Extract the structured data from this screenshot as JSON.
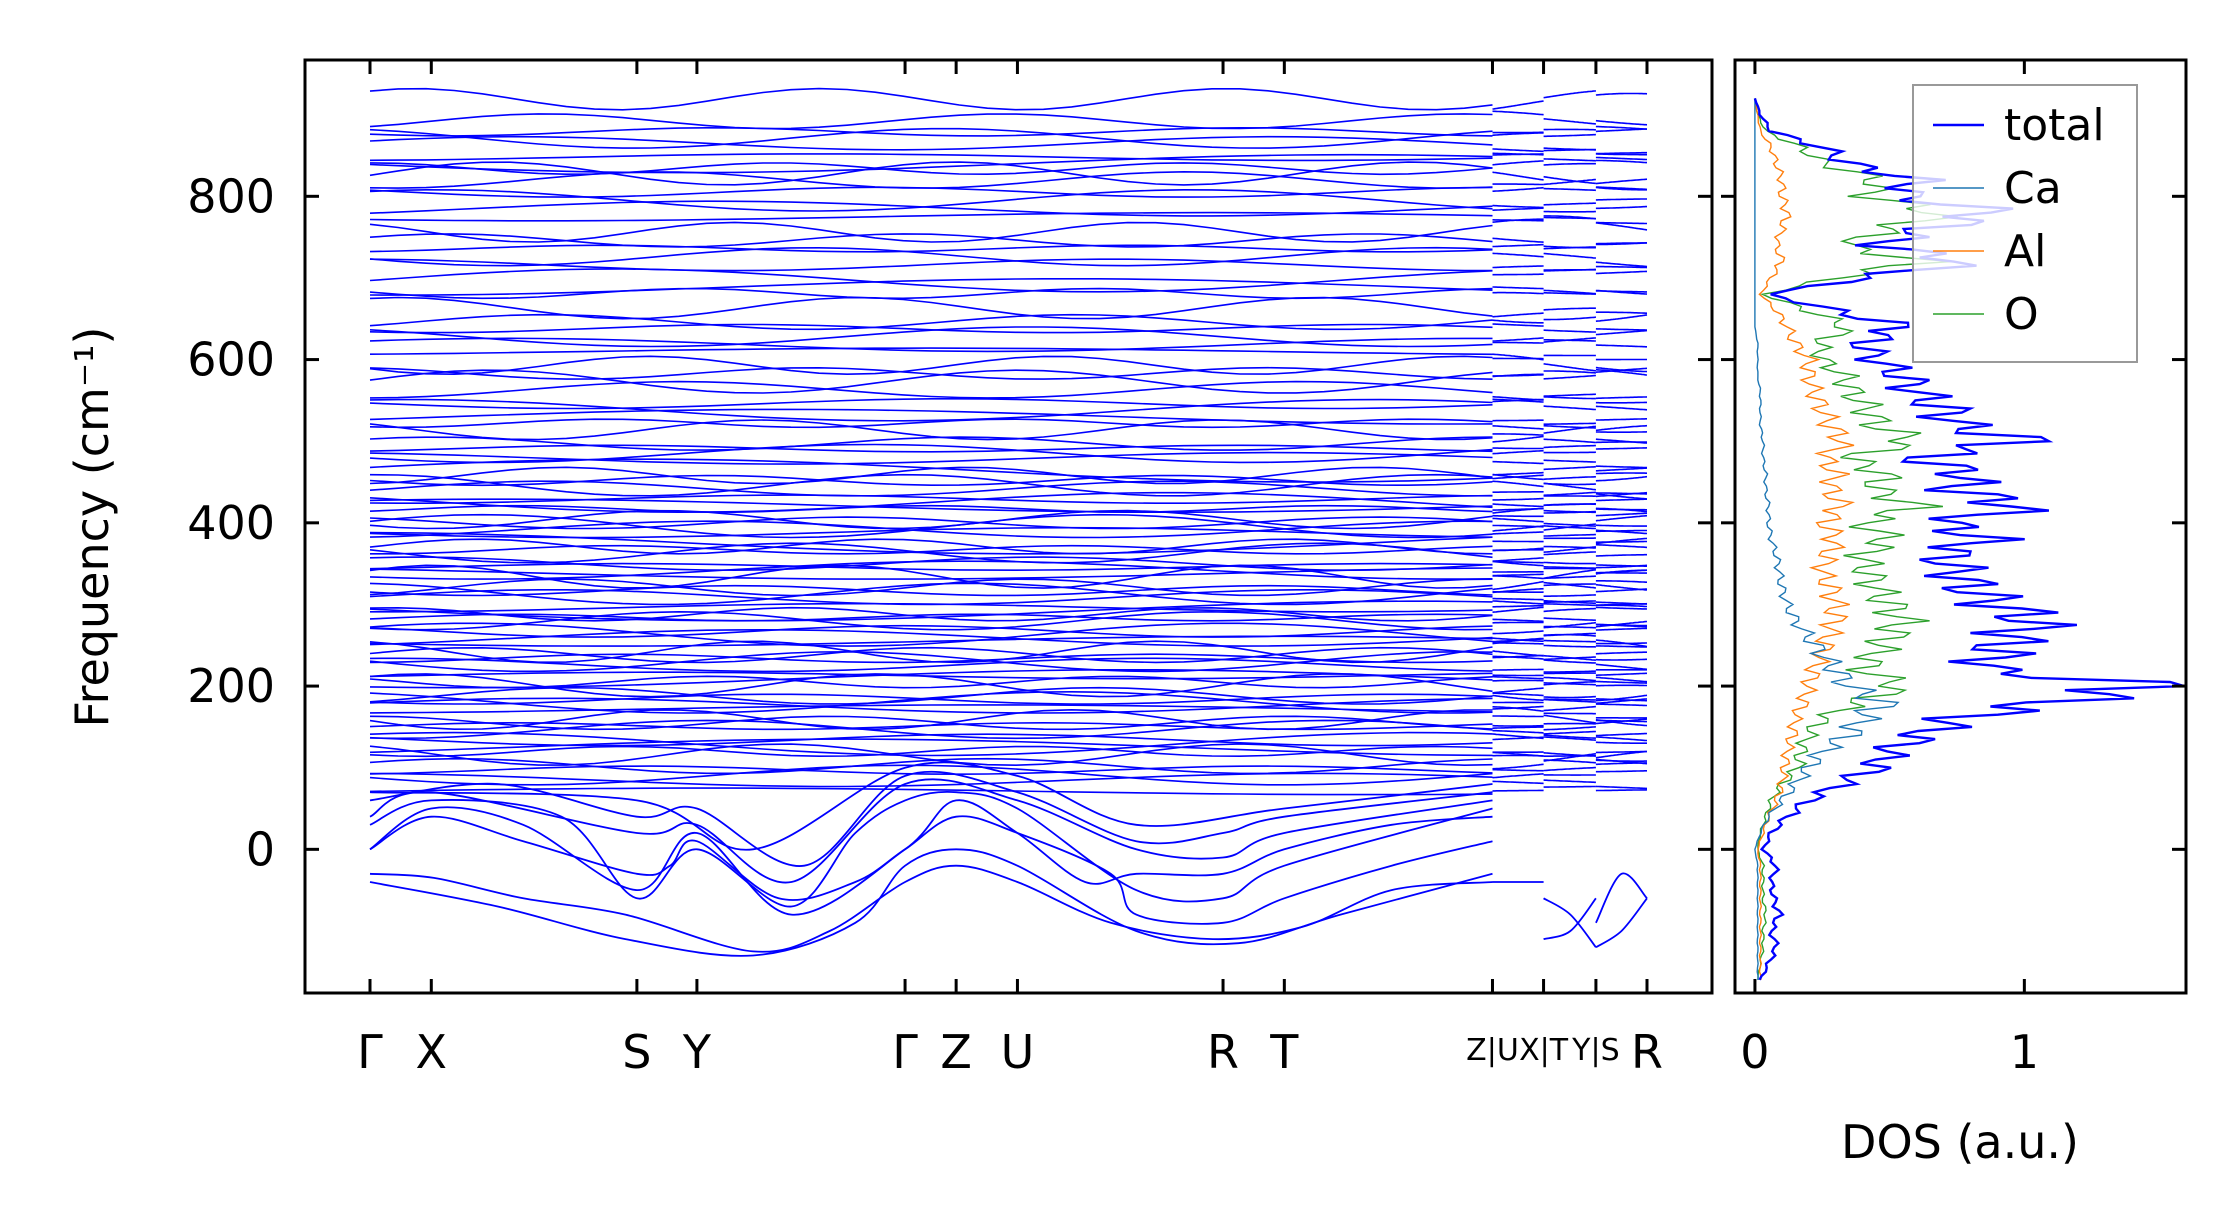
{
  "chart_data": [
    {
      "type": "line",
      "title": "",
      "xlabel": "",
      "ylabel": "Frequency (cm⁻¹)",
      "ylim": [
        -176,
        967
      ],
      "yticks": [
        0,
        200,
        400,
        600,
        800
      ],
      "grid": false,
      "kpath_ticks": [
        {
          "k": 0.0,
          "label": "Γ"
        },
        {
          "k": 0.048,
          "label": "X"
        },
        {
          "k": 0.209,
          "label": "S"
        },
        {
          "k": 0.256,
          "label": "Y"
        },
        {
          "k": 0.419,
          "label": "Γ"
        },
        {
          "k": 0.459,
          "label": "Z"
        },
        {
          "k": 0.507,
          "label": "U"
        },
        {
          "k": 0.668,
          "label": "R"
        },
        {
          "k": 0.716,
          "label": "T"
        },
        {
          "k": 0.879,
          "label": "Z|U",
          "top": "Z",
          "bottom": "U"
        },
        {
          "k": 0.919,
          "label": "X|T",
          "top": "X",
          "bottom": "T"
        },
        {
          "k": 0.96,
          "label": "Y|S",
          "top": "Y",
          "bottom": "S"
        },
        {
          "k": 1.0,
          "label": "R"
        }
      ],
      "segments": [
        [
          0.0,
          0.879
        ],
        [
          0.879,
          0.919
        ],
        [
          0.919,
          0.96
        ],
        [
          0.96,
          1.0
        ]
      ],
      "line_color": "#0000ff",
      "flat_band_frequencies": [
        75,
        82,
        90,
        98,
        105,
        112,
        118,
        125,
        131,
        138,
        144,
        150,
        156,
        162,
        168,
        174,
        180,
        186,
        192,
        198,
        204,
        210,
        216,
        222,
        228,
        234,
        240,
        246,
        252,
        258,
        264,
        270,
        276,
        282,
        288,
        294,
        300,
        306,
        312,
        318,
        324,
        330,
        336,
        342,
        348,
        354,
        360,
        366,
        372,
        378,
        384,
        390,
        396,
        402,
        408,
        414,
        420,
        426,
        432,
        438,
        444,
        452,
        460,
        468,
        476,
        484,
        492,
        500,
        510,
        520,
        530,
        540,
        550,
        560,
        572,
        584,
        596,
        606,
        616,
        628,
        640,
        650,
        660,
        680,
        690,
        700,
        712,
        724,
        736,
        748,
        760,
        772,
        784,
        796,
        808,
        816,
        826,
        834,
        842,
        852,
        862,
        870,
        880,
        895,
        915
      ],
      "low_bands": [
        [
          [
            0,
            -30
          ],
          [
            0.05,
            -35
          ],
          [
            0.12,
            -60
          ],
          [
            0.2,
            -80
          ],
          [
            0.3,
            -125
          ],
          [
            0.36,
            -100
          ],
          [
            0.419,
            -40
          ],
          [
            0.459,
            -20
          ],
          [
            0.507,
            -40
          ],
          [
            0.58,
            -90
          ],
          [
            0.66,
            -110
          ],
          [
            0.73,
            -95
          ],
          [
            0.8,
            -50
          ],
          [
            0.879,
            -40
          ]
        ],
        [
          [
            0,
            -40
          ],
          [
            0.1,
            -70
          ],
          [
            0.2,
            -110
          ],
          [
            0.3,
            -130
          ],
          [
            0.38,
            -90
          ],
          [
            0.419,
            -20
          ],
          [
            0.459,
            0
          ],
          [
            0.507,
            -20
          ],
          [
            0.6,
            -100
          ],
          [
            0.68,
            -115
          ],
          [
            0.76,
            -80
          ],
          [
            0.879,
            -30
          ]
        ],
        [
          [
            0,
            0
          ],
          [
            0.048,
            40
          ],
          [
            0.12,
            10
          ],
          [
            0.209,
            -30
          ],
          [
            0.235,
            -20
          ],
          [
            0.256,
            10
          ],
          [
            0.32,
            -60
          ],
          [
            0.38,
            -40
          ],
          [
            0.419,
            0
          ],
          [
            0.459,
            40
          ],
          [
            0.507,
            20
          ],
          [
            0.58,
            -30
          ],
          [
            0.6,
            -80
          ],
          [
            0.668,
            -90
          ],
          [
            0.716,
            -60
          ],
          [
            0.8,
            -20
          ],
          [
            0.879,
            10
          ]
        ],
        [
          [
            0,
            0
          ],
          [
            0.048,
            50
          ],
          [
            0.12,
            30
          ],
          [
            0.209,
            -50
          ],
          [
            0.256,
            20
          ],
          [
            0.33,
            -80
          ],
          [
            0.419,
            0
          ],
          [
            0.459,
            60
          ],
          [
            0.507,
            20
          ],
          [
            0.56,
            -40
          ],
          [
            0.6,
            -30
          ],
          [
            0.668,
            -30
          ],
          [
            0.716,
            0
          ],
          [
            0.8,
            30
          ],
          [
            0.879,
            40
          ]
        ],
        [
          [
            0,
            30
          ],
          [
            0.048,
            60
          ],
          [
            0.15,
            40
          ],
          [
            0.209,
            -60
          ],
          [
            0.256,
            0
          ],
          [
            0.33,
            -70
          ],
          [
            0.38,
            20
          ],
          [
            0.419,
            60
          ],
          [
            0.459,
            70
          ],
          [
            0.507,
            50
          ],
          [
            0.6,
            -50
          ],
          [
            0.668,
            -60
          ],
          [
            0.716,
            -20
          ],
          [
            0.879,
            50
          ]
        ],
        [
          [
            0,
            40
          ],
          [
            0.048,
            70
          ],
          [
            0.209,
            20
          ],
          [
            0.256,
            30
          ],
          [
            0.33,
            -40
          ],
          [
            0.419,
            80
          ],
          [
            0.507,
            60
          ],
          [
            0.6,
            0
          ],
          [
            0.668,
            -10
          ],
          [
            0.716,
            20
          ],
          [
            0.879,
            60
          ]
        ],
        [
          [
            0,
            60
          ],
          [
            0.1,
            80
          ],
          [
            0.209,
            40
          ],
          [
            0.256,
            50
          ],
          [
            0.34,
            -20
          ],
          [
            0.419,
            90
          ],
          [
            0.507,
            70
          ],
          [
            0.6,
            10
          ],
          [
            0.668,
            20
          ],
          [
            0.716,
            40
          ],
          [
            0.879,
            70
          ]
        ],
        [
          [
            0,
            70
          ],
          [
            0.209,
            60
          ],
          [
            0.3,
            0
          ],
          [
            0.419,
            100
          ],
          [
            0.507,
            90
          ],
          [
            0.6,
            30
          ],
          [
            0.716,
            50
          ],
          [
            0.879,
            80
          ]
        ],
        [
          [
            0.879,
            -40
          ],
          [
            0.919,
            -40
          ]
        ],
        [
          [
            0.919,
            -60
          ],
          [
            0.94,
            -80
          ],
          [
            0.96,
            -120
          ]
        ],
        [
          [
            0.919,
            -110
          ],
          [
            0.94,
            -100
          ],
          [
            0.96,
            -60
          ]
        ],
        [
          [
            0.96,
            -120
          ],
          [
            0.98,
            -100
          ],
          [
            1.0,
            -60
          ]
        ],
        [
          [
            0.96,
            -90
          ],
          [
            0.98,
            -30
          ],
          [
            1.0,
            -60
          ]
        ]
      ]
    },
    {
      "type": "line",
      "xlabel": "DOS (a.u.)",
      "ylabel": "",
      "xlim": [
        -0.074,
        1.6
      ],
      "ylim": [
        -176,
        967
      ],
      "xticks": [
        0,
        1
      ],
      "legend_position": "top-right",
      "frequency": [
        -160,
        -140,
        -120,
        -100,
        -80,
        -60,
        -40,
        -20,
        0,
        20,
        40,
        60,
        80,
        100,
        120,
        140,
        160,
        180,
        200,
        220,
        240,
        260,
        280,
        300,
        320,
        340,
        360,
        380,
        400,
        420,
        440,
        460,
        480,
        500,
        520,
        540,
        560,
        580,
        600,
        620,
        640,
        660,
        680,
        700,
        720,
        740,
        760,
        780,
        800,
        820,
        840,
        860,
        880,
        900,
        920
      ],
      "series": [
        {
          "name": "total",
          "color": "#0000ff",
          "values": [
            0.02,
            0.05,
            0.08,
            0.06,
            0.09,
            0.07,
            0.06,
            0.08,
            0.03,
            0.06,
            0.12,
            0.2,
            0.32,
            0.45,
            0.5,
            0.62,
            0.75,
            1.1,
            1.5,
            0.85,
            0.9,
            0.95,
            1.05,
            0.9,
            0.8,
            0.75,
            0.7,
            0.85,
            0.7,
            1.0,
            0.75,
            0.8,
            0.6,
            1.0,
            0.75,
            0.7,
            0.6,
            0.55,
            0.45,
            0.4,
            0.55,
            0.3,
            0.05,
            0.4,
            0.8,
            0.45,
            0.65,
            0.9,
            0.55,
            0.6,
            0.35,
            0.25,
            0.06,
            0.02,
            0.0
          ]
        },
        {
          "name": "Ca",
          "color": "#1f77b4",
          "values": [
            0.01,
            0.01,
            0.01,
            0.01,
            0.01,
            0.01,
            0.01,
            0.01,
            0.0,
            0.02,
            0.05,
            0.1,
            0.15,
            0.2,
            0.25,
            0.35,
            0.4,
            0.48,
            0.35,
            0.3,
            0.25,
            0.2,
            0.15,
            0.12,
            0.1,
            0.09,
            0.08,
            0.06,
            0.05,
            0.05,
            0.04,
            0.04,
            0.03,
            0.03,
            0.02,
            0.02,
            0.02,
            0.01,
            0.01,
            0.01,
            0.0,
            0.0,
            0.0,
            0.0,
            0.0,
            0.0,
            0.0,
            0.0,
            0.0,
            0.0,
            0.0,
            0.0,
            0.0,
            0.0,
            0.0
          ]
        },
        {
          "name": "Al",
          "color": "#ff7f0e",
          "values": [
            0.02,
            0.02,
            0.02,
            0.02,
            0.02,
            0.02,
            0.02,
            0.02,
            0.01,
            0.03,
            0.05,
            0.08,
            0.1,
            0.11,
            0.12,
            0.14,
            0.15,
            0.18,
            0.2,
            0.22,
            0.25,
            0.27,
            0.3,
            0.3,
            0.28,
            0.25,
            0.27,
            0.3,
            0.26,
            0.32,
            0.28,
            0.3,
            0.26,
            0.33,
            0.28,
            0.25,
            0.22,
            0.2,
            0.2,
            0.15,
            0.12,
            0.08,
            0.02,
            0.06,
            0.1,
            0.08,
            0.1,
            0.12,
            0.1,
            0.1,
            0.08,
            0.06,
            0.02,
            0.01,
            0.0
          ]
        },
        {
          "name": "O",
          "color": "#2ca02c",
          "values": [
            0.01,
            0.02,
            0.03,
            0.03,
            0.04,
            0.03,
            0.03,
            0.03,
            0.01,
            0.02,
            0.04,
            0.06,
            0.1,
            0.16,
            0.17,
            0.2,
            0.25,
            0.38,
            0.55,
            0.4,
            0.45,
            0.5,
            0.55,
            0.5,
            0.45,
            0.42,
            0.4,
            0.5,
            0.4,
            0.6,
            0.45,
            0.48,
            0.35,
            0.6,
            0.45,
            0.42,
            0.36,
            0.33,
            0.25,
            0.24,
            0.35,
            0.2,
            0.03,
            0.3,
            0.62,
            0.33,
            0.5,
            0.7,
            0.42,
            0.46,
            0.26,
            0.17,
            0.04,
            0.01,
            0.0
          ]
        }
      ]
    }
  ]
}
